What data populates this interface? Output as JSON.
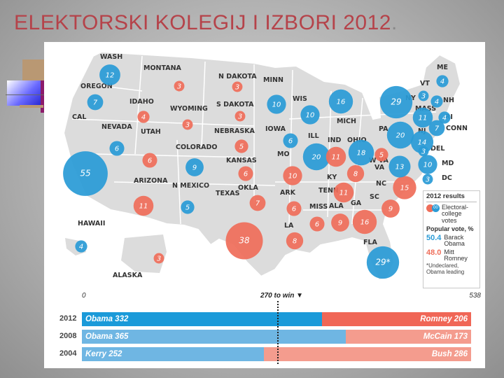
{
  "slide": {
    "title": "ELEKTORSKI KOLEGIJ I IZBORI 2012",
    "title_suffix": "."
  },
  "colors": {
    "obama": "#2a9bd6",
    "romney": "#ef6e5a",
    "map_fill": "#dcdcdc",
    "title": "#b5434a"
  },
  "map": {
    "state_labels": [
      {
        "id": "WASH",
        "label": "WASH"
      },
      {
        "id": "OREGON",
        "label": "OREGON"
      },
      {
        "id": "CAL",
        "label": "CAL"
      },
      {
        "id": "IDAHO",
        "label": "IDAHO"
      },
      {
        "id": "NEVADA",
        "label": "NEVADA"
      },
      {
        "id": "UTAH",
        "label": "UTAH"
      },
      {
        "id": "MONTANA",
        "label": "MONTANA"
      },
      {
        "id": "WYOMING",
        "label": "WYOMING"
      },
      {
        "id": "COLORADO",
        "label": "COLORADO"
      },
      {
        "id": "ARIZONA",
        "label": "ARIZONA"
      },
      {
        "id": "NMEXICO",
        "label": "N MEXICO"
      },
      {
        "id": "NDAKOTA",
        "label": "N DAKOTA"
      },
      {
        "id": "SDAKOTA",
        "label": "S DAKOTA"
      },
      {
        "id": "NEBRASKA",
        "label": "NEBRASKA"
      },
      {
        "id": "KANSAS",
        "label": "KANSAS"
      },
      {
        "id": "OKLA",
        "label": "OKLA"
      },
      {
        "id": "TEXAS",
        "label": "TEXAS"
      },
      {
        "id": "MINN",
        "label": "MINN"
      },
      {
        "id": "IOWA",
        "label": "IOWA"
      },
      {
        "id": "MO",
        "label": "MO"
      },
      {
        "id": "ARK",
        "label": "ARK"
      },
      {
        "id": "LA",
        "label": "LA"
      },
      {
        "id": "WIS",
        "label": "WIS"
      },
      {
        "id": "ILL",
        "label": "ILL"
      },
      {
        "id": "MICH",
        "label": "MICH"
      },
      {
        "id": "IND",
        "label": "IND"
      },
      {
        "id": "OHIO",
        "label": "OHIO"
      },
      {
        "id": "KY",
        "label": "KY"
      },
      {
        "id": "TENN",
        "label": "TENN"
      },
      {
        "id": "MISS",
        "label": "MISS"
      },
      {
        "id": "ALA",
        "label": "ALA"
      },
      {
        "id": "GA",
        "label": "GA"
      },
      {
        "id": "FLA",
        "label": "FLA"
      },
      {
        "id": "SC",
        "label": "SC"
      },
      {
        "id": "NC",
        "label": "NC"
      },
      {
        "id": "VA",
        "label": "VA"
      },
      {
        "id": "WVA",
        "label": "W VA"
      },
      {
        "id": "PA",
        "label": "PA"
      },
      {
        "id": "NY",
        "label": "NY"
      },
      {
        "id": "VT",
        "label": "VT"
      },
      {
        "id": "MASS",
        "label": "MASS"
      },
      {
        "id": "NH",
        "label": "NH"
      },
      {
        "id": "ME",
        "label": "ME"
      },
      {
        "id": "RI",
        "label": "RI"
      },
      {
        "id": "CONN",
        "label": "CONN"
      },
      {
        "id": "NJ",
        "label": "NJ"
      },
      {
        "id": "DEL",
        "label": "DEL"
      },
      {
        "id": "MD",
        "label": "MD"
      },
      {
        "id": "DC",
        "label": "DC"
      },
      {
        "id": "HAWAII",
        "label": "HAWAII"
      },
      {
        "id": "ALASKA",
        "label": "ALASKA"
      }
    ],
    "bubbles": [
      {
        "state": "WASH",
        "votes": "12",
        "winner": "obama"
      },
      {
        "state": "OREGON",
        "votes": "7",
        "winner": "obama"
      },
      {
        "state": "CAL",
        "votes": "55",
        "winner": "obama"
      },
      {
        "state": "IDAHO",
        "votes": "4",
        "winner": "romney"
      },
      {
        "state": "NEVADA",
        "votes": "6",
        "winner": "obama"
      },
      {
        "state": "UTAH",
        "votes": "6",
        "winner": "romney"
      },
      {
        "state": "MONTANA",
        "votes": "3",
        "winner": "romney"
      },
      {
        "state": "WYOMING",
        "votes": "3",
        "winner": "romney"
      },
      {
        "state": "COLORADO",
        "votes": "9",
        "winner": "obama"
      },
      {
        "state": "ARIZONA",
        "votes": "11",
        "winner": "romney"
      },
      {
        "state": "NMEXICO",
        "votes": "5",
        "winner": "obama"
      },
      {
        "state": "NDAKOTA",
        "votes": "3",
        "winner": "romney"
      },
      {
        "state": "SDAKOTA",
        "votes": "3",
        "winner": "romney"
      },
      {
        "state": "NEBRASKA",
        "votes": "5",
        "winner": "romney"
      },
      {
        "state": "KANSAS",
        "votes": "6",
        "winner": "romney"
      },
      {
        "state": "OKLA",
        "votes": "7",
        "winner": "romney"
      },
      {
        "state": "TEXAS",
        "votes": "38",
        "winner": "romney"
      },
      {
        "state": "MINN",
        "votes": "10",
        "winner": "obama"
      },
      {
        "state": "IOWA",
        "votes": "6",
        "winner": "obama"
      },
      {
        "state": "MO",
        "votes": "10",
        "winner": "romney"
      },
      {
        "state": "ARK",
        "votes": "6",
        "winner": "romney"
      },
      {
        "state": "LA",
        "votes": "8",
        "winner": "romney"
      },
      {
        "state": "WIS",
        "votes": "10",
        "winner": "obama"
      },
      {
        "state": "ILL",
        "votes": "20",
        "winner": "obama"
      },
      {
        "state": "MICH",
        "votes": "16",
        "winner": "obama"
      },
      {
        "state": "IND",
        "votes": "11",
        "winner": "romney"
      },
      {
        "state": "OHIO",
        "votes": "18",
        "winner": "obama"
      },
      {
        "state": "KY",
        "votes": "8",
        "winner": "romney"
      },
      {
        "state": "TENN",
        "votes": "11",
        "winner": "romney"
      },
      {
        "state": "MISS",
        "votes": "6",
        "winner": "romney"
      },
      {
        "state": "ALA",
        "votes": "9",
        "winner": "romney"
      },
      {
        "state": "GA",
        "votes": "16",
        "winner": "romney"
      },
      {
        "state": "FLA",
        "votes": "29*",
        "winner": "obama"
      },
      {
        "state": "SC",
        "votes": "9",
        "winner": "romney"
      },
      {
        "state": "NC",
        "votes": "15",
        "winner": "romney"
      },
      {
        "state": "VA",
        "votes": "13",
        "winner": "obama"
      },
      {
        "state": "WVA",
        "votes": "5",
        "winner": "romney"
      },
      {
        "state": "PA",
        "votes": "20",
        "winner": "obama"
      },
      {
        "state": "NY",
        "votes": "29",
        "winner": "obama"
      },
      {
        "state": "VT",
        "votes": "3",
        "winner": "obama"
      },
      {
        "state": "MASS",
        "votes": "11",
        "winner": "obama"
      },
      {
        "state": "NH",
        "votes": "4",
        "winner": "obama"
      },
      {
        "state": "ME",
        "votes": "4",
        "winner": "obama"
      },
      {
        "state": "RI",
        "votes": "4",
        "winner": "obama"
      },
      {
        "state": "CONN",
        "votes": "7",
        "winner": "obama"
      },
      {
        "state": "NJ",
        "votes": "14",
        "winner": "obama"
      },
      {
        "state": "DEL",
        "votes": "3",
        "winner": "obama"
      },
      {
        "state": "MD",
        "votes": "10",
        "winner": "obama"
      },
      {
        "state": "DC",
        "votes": "3",
        "winner": "obama"
      },
      {
        "state": "HAWAII",
        "votes": "4",
        "winner": "obama"
      },
      {
        "state": "ALASKA",
        "votes": "3",
        "winner": "romney"
      }
    ]
  },
  "legend": {
    "title": "2012 results",
    "sample_votes": "00",
    "electoral_label": "Electoral-college votes",
    "popular_vote_title": "Popular vote, %",
    "obama_pct": "50.4",
    "obama_name": "Barack Obama",
    "romney_pct": "48.0",
    "romney_name": "Mitt Romney",
    "note": "*Undeclared, Obama leading"
  },
  "history_chart": {
    "axis_min_label": "0",
    "axis_max_label": "538",
    "axis_max": 538,
    "threshold": 270,
    "threshold_label": "270 to win",
    "rows": [
      {
        "year": "2012",
        "dem_label": "Obama 332",
        "dem_votes": 332,
        "rep_label": "Romney 206",
        "rep_votes": 206,
        "dem_color": "#1a9ad9",
        "rep_color": "#f06656"
      },
      {
        "year": "2008",
        "dem_label": "Obama 365",
        "dem_votes": 365,
        "rep_label": "McCain 173",
        "rep_votes": 173,
        "dem_color": "#6fb6e3",
        "rep_color": "#f49c8e"
      },
      {
        "year": "2004",
        "dem_label": "Kerry 252",
        "dem_votes": 252,
        "rep_label": "Bush 286",
        "rep_votes": 286,
        "dem_color": "#6fb6e3",
        "rep_color": "#f49c8e"
      }
    ]
  }
}
